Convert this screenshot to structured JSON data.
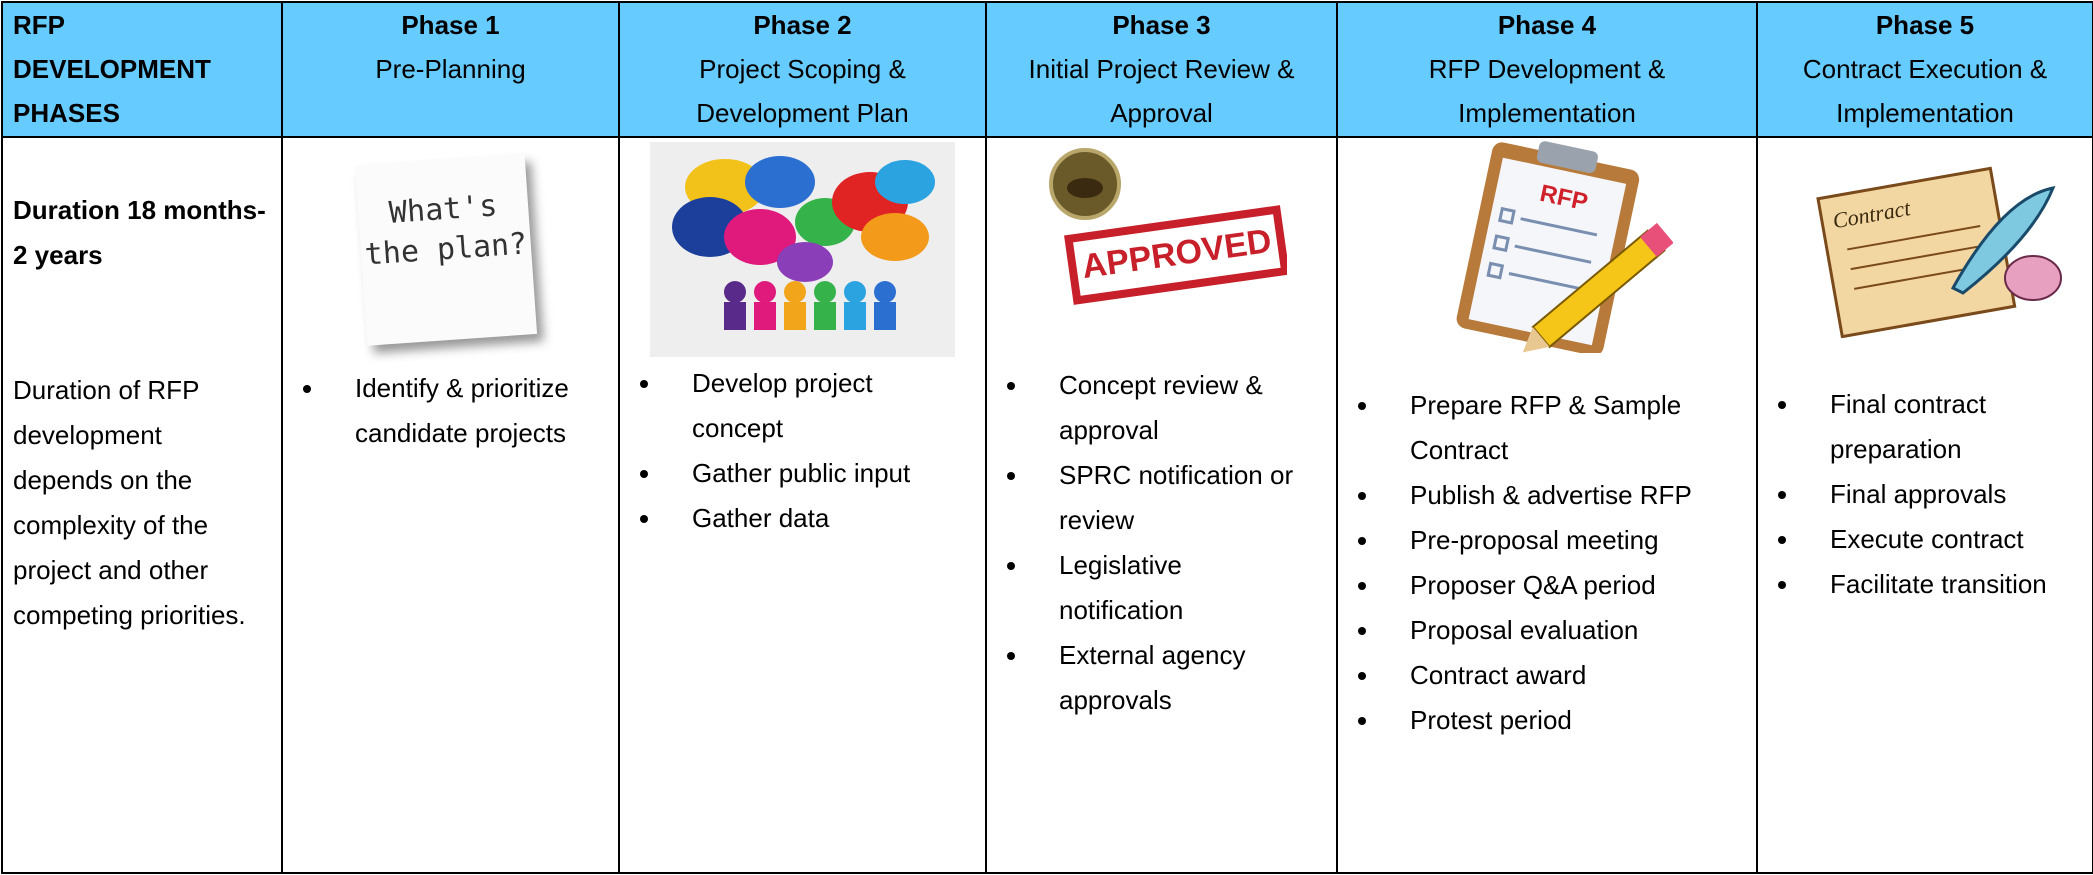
{
  "header": {
    "label": "RFP\nDEVELOPMENT\nPHASES",
    "phases": [
      {
        "phase": "Phase 1",
        "name": "Pre-Planning"
      },
      {
        "phase": "Phase 2",
        "name": "Project Scoping & Development Plan"
      },
      {
        "phase": "Phase 3",
        "name": "Initial Project Review & Approval"
      },
      {
        "phase": "Phase 4",
        "name": "RFP Development & Implementation"
      },
      {
        "phase": "Phase 5",
        "name": "Contract Execution & Implementation"
      }
    ]
  },
  "duration": {
    "title": "Duration 18 months- 2 years",
    "text": "Duration of RFP development depends on the complexity of the project and other competing priorities."
  },
  "phases": [
    {
      "image_text": "What's the plan?",
      "bullets": [
        "Identify & prioritize candidate projects"
      ]
    },
    {
      "bullets": [
        "Develop project concept",
        "Gather public input",
        "Gather data"
      ]
    },
    {
      "image_text": "APPROVED",
      "bullets": [
        "Concept review & approval",
        "SPRC notification or review",
        "Legislative notification",
        "External agency approvals"
      ]
    },
    {
      "image_text": "RFP",
      "bullets": [
        "Prepare RFP & Sample Contract",
        "Publish & advertise RFP",
        "Pre-proposal meeting",
        "Proposer Q&A period",
        "Proposal evaluation",
        "Contract award",
        "Protest period"
      ]
    },
    {
      "image_text": "Contract",
      "bullets": [
        "Final contract preparation",
        "Final approvals",
        "Execute contract",
        "Facilitate transition"
      ]
    }
  ]
}
